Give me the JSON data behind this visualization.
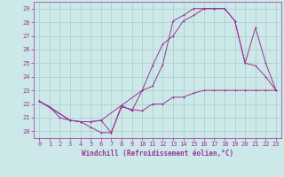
{
  "xlabel": "Windchill (Refroidissement éolien,°C)",
  "bg_color": "#cce8e8",
  "grid_color": "#aacccc",
  "line_color": "#993399",
  "spine_color": "#993399",
  "xlim": [
    -0.5,
    23.5
  ],
  "ylim": [
    19.5,
    29.5
  ],
  "yticks": [
    20,
    21,
    22,
    23,
    24,
    25,
    26,
    27,
    28,
    29
  ],
  "xticks": [
    0,
    1,
    2,
    3,
    4,
    5,
    6,
    7,
    8,
    9,
    10,
    11,
    12,
    13,
    14,
    15,
    16,
    17,
    18,
    19,
    20,
    21,
    22,
    23
  ],
  "series1_x": [
    0,
    1,
    2,
    3,
    4,
    5,
    6,
    7,
    8,
    9,
    10,
    11,
    12,
    13,
    14,
    15,
    16,
    17,
    18,
    19,
    20,
    21,
    22,
    23
  ],
  "series1_y": [
    22.2,
    21.8,
    21.0,
    20.8,
    20.7,
    20.3,
    19.9,
    19.9,
    21.8,
    21.6,
    21.5,
    22.0,
    22.0,
    22.5,
    22.5,
    22.8,
    23.0,
    23.0,
    23.0,
    23.0,
    23.0,
    23.0,
    23.0,
    23.0
  ],
  "series2_x": [
    0,
    1,
    3,
    4,
    5,
    6,
    7,
    8,
    9,
    10,
    11,
    12,
    13,
    14,
    15,
    16,
    17,
    18,
    19,
    20,
    21,
    22,
    23
  ],
  "series2_y": [
    22.2,
    21.8,
    20.8,
    20.7,
    20.7,
    20.8,
    19.9,
    21.9,
    21.5,
    23.0,
    24.8,
    26.4,
    27.0,
    28.1,
    28.5,
    29.0,
    29.0,
    29.0,
    28.1,
    25.0,
    24.8,
    24.0,
    23.0
  ],
  "series3_x": [
    0,
    3,
    4,
    5,
    6,
    10,
    11,
    12,
    13,
    14,
    15,
    16,
    17,
    18,
    19,
    20,
    21,
    22,
    23
  ],
  "series3_y": [
    22.2,
    20.8,
    20.7,
    20.7,
    20.8,
    23.0,
    23.3,
    24.9,
    28.1,
    28.5,
    29.0,
    29.0,
    29.0,
    29.0,
    28.1,
    25.0,
    27.6,
    25.0,
    23.0
  ],
  "tick_fontsize": 5,
  "xlabel_fontsize": 5.5,
  "marker_size": 2.0,
  "line_width": 0.7
}
